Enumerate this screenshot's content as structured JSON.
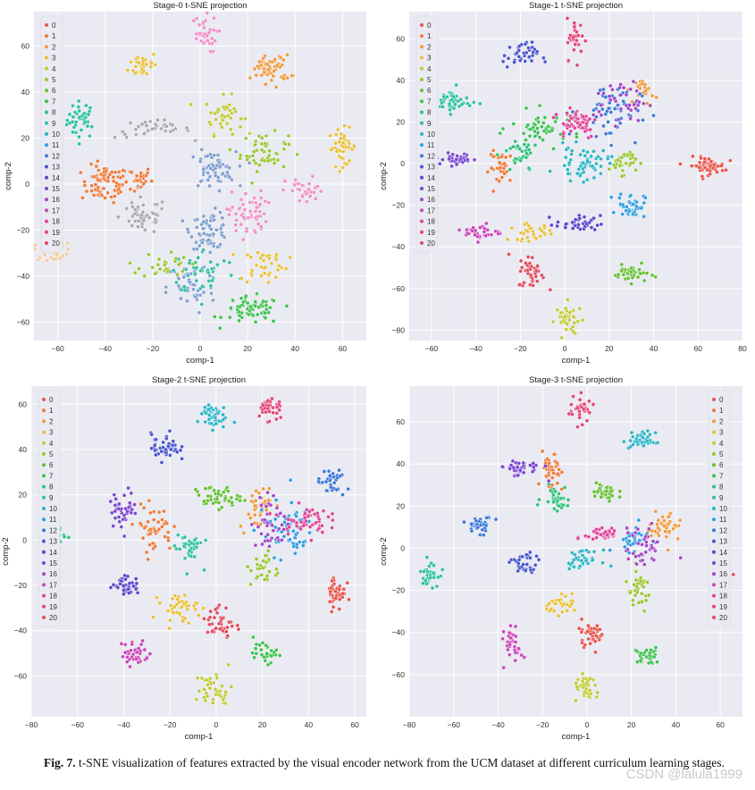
{
  "figure": {
    "caption_label": "Fig. 7.",
    "caption_text": "t-SNE visualization of features extracted by the visual encoder network from the UCM dataset at different curriculum learning stages.",
    "watermark": "CSDN @lalula1999"
  },
  "palette": [
    "#e8534a",
    "#ee7b3a",
    "#ef9a3c",
    "#e8c138",
    "#c2cb34",
    "#99c832",
    "#64c232",
    "#3ec24f",
    "#2fc27b",
    "#2ec0a3",
    "#2bb5c6",
    "#2e9ee0",
    "#3a79d8",
    "#4a56cf",
    "#5b45cc",
    "#7a45cf",
    "#a346c9",
    "#cb45b8",
    "#e04498",
    "#e34476",
    "#e24a5c"
  ],
  "chart_data": [
    {
      "type": "scatter",
      "title": "Stage-0 t-SNE projection",
      "xlabel": "comp-1",
      "ylabel": "comp-2",
      "xlim": [
        -70,
        70
      ],
      "ylim": [
        -68,
        75
      ],
      "xticks": [
        -60,
        -40,
        -20,
        0,
        20,
        40,
        60
      ],
      "yticks": [
        -60,
        -40,
        -20,
        0,
        20,
        40,
        60
      ],
      "legend_position": "top-left",
      "legend_labels": [
        "0",
        "1",
        "2",
        "3",
        "4",
        "5",
        "6",
        "7",
        "8",
        "9",
        "10",
        "11",
        "12",
        "13",
        "14",
        "15",
        "16",
        "17",
        "18",
        "19",
        "20"
      ],
      "clusters": [
        {
          "label": 0,
          "color": "#2ec0a3",
          "cx": -50,
          "cy": 28,
          "sx": 3,
          "sy": 4,
          "n": 40
        },
        {
          "label": 1,
          "color": "#ee7b3a",
          "cx": -40,
          "cy": 0,
          "sx": 5,
          "sy": 4,
          "n": 70
        },
        {
          "label": 2,
          "color": "#ee7b3a",
          "cx": -28,
          "cy": 2,
          "sx": 4,
          "sy": 3,
          "n": 30
        },
        {
          "label": 3,
          "color": "#e8c138",
          "cx": -24,
          "cy": 52,
          "sx": 3,
          "sy": 3,
          "n": 35
        },
        {
          "label": 4,
          "color": "#c2cb34",
          "cx": 10,
          "cy": 30,
          "sx": 4,
          "sy": 4,
          "n": 40
        },
        {
          "label": 5,
          "color": "#99c832",
          "cx": 27,
          "cy": 14,
          "sx": 5,
          "sy": 4,
          "n": 50
        },
        {
          "label": 6,
          "color": "#e8c138",
          "cx": 60,
          "cy": 16,
          "sx": 3,
          "sy": 4,
          "n": 45
        },
        {
          "label": 7,
          "color": "#aaaaaa",
          "cx": -20,
          "cy": 24,
          "sx": 8,
          "sy": 2,
          "n": 35
        },
        {
          "label": 8,
          "color": "#aaaaaa",
          "cx": -24,
          "cy": -14,
          "sx": 5,
          "sy": 4,
          "n": 50
        },
        {
          "label": 9,
          "color": "#3ec24f",
          "cx": 22,
          "cy": -55,
          "sx": 6,
          "sy": 3,
          "n": 65
        },
        {
          "label": 10,
          "color": "#7f9fd0",
          "cx": 4,
          "cy": -20,
          "sx": 4,
          "sy": 4,
          "n": 70
        },
        {
          "label": 11,
          "color": "#7f9fd0",
          "cx": 5,
          "cy": 6,
          "sx": 5,
          "sy": 4,
          "n": 60
        },
        {
          "label": 12,
          "color": "#7f9fd0",
          "cx": -4,
          "cy": -45,
          "sx": 5,
          "sy": 6,
          "n": 45
        },
        {
          "label": 13,
          "color": "#2ec0a3",
          "cx": 2,
          "cy": -38,
          "sx": 7,
          "sy": 5,
          "n": 45
        },
        {
          "label": 14,
          "color": "#99c832",
          "cx": -15,
          "cy": -35,
          "sx": 5,
          "sy": 3,
          "n": 30
        },
        {
          "label": 15,
          "color": "#e8c138",
          "cx": 27,
          "cy": -35,
          "sx": 5,
          "sy": 4,
          "n": 40
        },
        {
          "label": 16,
          "color": "#f08fc8",
          "cx": 1,
          "cy": 65,
          "sx": 3,
          "sy": 4,
          "n": 35
        },
        {
          "label": 17,
          "color": "#f08fc8",
          "cx": 20,
          "cy": -13,
          "sx": 4,
          "sy": 5,
          "n": 55
        },
        {
          "label": 18,
          "color": "#f08fc8",
          "cx": 44,
          "cy": -3,
          "sx": 4,
          "sy": 3,
          "n": 35
        },
        {
          "label": 19,
          "color": "#ef9a3c",
          "cx": 30,
          "cy": 50,
          "sx": 4,
          "sy": 3,
          "n": 60
        },
        {
          "label": 20,
          "color": "#f2c99a",
          "cx": -62,
          "cy": -29,
          "sx": 4,
          "sy": 2,
          "n": 35
        }
      ]
    },
    {
      "type": "scatter",
      "title": "Stage-1 t-SNE projection",
      "xlabel": "comp-1",
      "ylabel": "comp-2",
      "xlim": [
        -70,
        80
      ],
      "ylim": [
        -85,
        73
      ],
      "xticks": [
        -60,
        -40,
        -20,
        0,
        20,
        40,
        60,
        80
      ],
      "yticks": [
        -80,
        -60,
        -40,
        -20,
        0,
        20,
        40,
        60
      ],
      "legend_position": "top-left",
      "legend_labels": [
        "0",
        "1",
        "2",
        "3",
        "4",
        "5",
        "6",
        "7",
        "8",
        "9",
        "10",
        "11",
        "12",
        "13",
        "14",
        "15",
        "16",
        "17",
        "18",
        "19",
        "20"
      ],
      "clusters": [
        {
          "label": 0,
          "color": "#e8534a",
          "cx": 64,
          "cy": -1,
          "sx": 4,
          "sy": 2,
          "n": 60
        },
        {
          "label": 1,
          "color": "#ee7b3a",
          "cx": -28,
          "cy": -2,
          "sx": 3,
          "sy": 4,
          "n": 35
        },
        {
          "label": 2,
          "color": "#ef9a3c",
          "cx": 36,
          "cy": 35,
          "sx": 2,
          "sy": 3,
          "n": 25
        },
        {
          "label": 3,
          "color": "#e8c138",
          "cx": -15,
          "cy": -33,
          "sx": 5,
          "sy": 2,
          "n": 30
        },
        {
          "label": 4,
          "color": "#c2cb34",
          "cx": 2,
          "cy": -75,
          "sx": 3,
          "sy": 4,
          "n": 40
        },
        {
          "label": 5,
          "color": "#99c832",
          "cx": 26,
          "cy": 1,
          "sx": 3,
          "sy": 3,
          "n": 35
        },
        {
          "label": 6,
          "color": "#64c232",
          "cx": 30,
          "cy": -53,
          "sx": 4,
          "sy": 2,
          "n": 35
        },
        {
          "label": 7,
          "color": "#3ec24f",
          "cx": -8,
          "cy": 17,
          "sx": 8,
          "sy": 4,
          "n": 50
        },
        {
          "label": 8,
          "color": "#2fc27b",
          "cx": -20,
          "cy": 4,
          "sx": 4,
          "sy": 5,
          "n": 35
        },
        {
          "label": 9,
          "color": "#2ec0a3",
          "cx": -50,
          "cy": 30,
          "sx": 4,
          "sy": 3,
          "n": 45
        },
        {
          "label": 10,
          "color": "#2bb5c6",
          "cx": 8,
          "cy": 0,
          "sx": 6,
          "sy": 4,
          "n": 55
        },
        {
          "label": 11,
          "color": "#2e9ee0",
          "cx": 30,
          "cy": -20,
          "sx": 3,
          "sy": 3,
          "n": 45
        },
        {
          "label": 12,
          "color": "#3a79d8",
          "cx": 20,
          "cy": 25,
          "sx": 7,
          "sy": 7,
          "n": 55
        },
        {
          "label": 13,
          "color": "#4a56cf",
          "cx": -20,
          "cy": 52,
          "sx": 4,
          "sy": 3,
          "n": 40
        },
        {
          "label": 14,
          "color": "#5b45cc",
          "cx": 6,
          "cy": -29,
          "sx": 5,
          "sy": 2,
          "n": 35
        },
        {
          "label": 15,
          "color": "#7a45cf",
          "cx": -48,
          "cy": 2,
          "sx": 5,
          "sy": 1.5,
          "n": 35
        },
        {
          "label": 16,
          "color": "#a346c9",
          "cx": 25,
          "cy": 30,
          "sx": 6,
          "sy": 5,
          "n": 40
        },
        {
          "label": 17,
          "color": "#cb45b8",
          "cx": -37,
          "cy": -33,
          "sx": 4,
          "sy": 2,
          "n": 35
        },
        {
          "label": 18,
          "color": "#e04498",
          "cx": 5,
          "cy": 20,
          "sx": 5,
          "sy": 4,
          "n": 55
        },
        {
          "label": 19,
          "color": "#e34476",
          "cx": 5,
          "cy": 60,
          "sx": 2,
          "sy": 5,
          "n": 30
        },
        {
          "label": 20,
          "color": "#e24a5c",
          "cx": -15,
          "cy": -52,
          "sx": 3,
          "sy": 4,
          "n": 40
        }
      ]
    },
    {
      "type": "scatter",
      "title": "Stage-2 t-SNE projection",
      "xlabel": "comp-1",
      "ylabel": "comp-2",
      "xlim": [
        -80,
        65
      ],
      "ylim": [
        -78,
        68
      ],
      "xticks": [
        -80,
        -60,
        -40,
        -20,
        0,
        20,
        40,
        60
      ],
      "yticks": [
        -60,
        -40,
        -20,
        0,
        20,
        40,
        60
      ],
      "legend_position": "top-left",
      "legend_labels": [
        "0",
        "1",
        "2",
        "3",
        "4",
        "5",
        "6",
        "7",
        "8",
        "9",
        "10",
        "11",
        "12",
        "13",
        "14",
        "15",
        "16",
        "17",
        "18",
        "19",
        "20"
      ],
      "clusters": [
        {
          "label": 0,
          "color": "#e8534a",
          "cx": 52,
          "cy": -23,
          "sx": 2,
          "sy": 4,
          "n": 45
        },
        {
          "label": 1,
          "color": "#ee7b3a",
          "cx": -27,
          "cy": 5,
          "sx": 4,
          "sy": 5,
          "n": 45
        },
        {
          "label": 2,
          "color": "#ef9a3c",
          "cx": 18,
          "cy": 15,
          "sx": 4,
          "sy": 5,
          "n": 40
        },
        {
          "label": 3,
          "color": "#e8c138",
          "cx": -16,
          "cy": -30,
          "sx": 4,
          "sy": 3,
          "n": 40
        },
        {
          "label": 4,
          "color": "#c2cb34",
          "cx": -1,
          "cy": -66,
          "sx": 4,
          "sy": 4,
          "n": 40
        },
        {
          "label": 5,
          "color": "#99c832",
          "cx": 21,
          "cy": -13,
          "sx": 3,
          "sy": 4,
          "n": 30
        },
        {
          "label": 6,
          "color": "#64c232",
          "cx": 0,
          "cy": 19,
          "sx": 5,
          "sy": 2.5,
          "n": 45
        },
        {
          "label": 7,
          "color": "#3ec24f",
          "cx": 22,
          "cy": -50,
          "sx": 3,
          "sy": 2,
          "n": 30
        },
        {
          "label": 8,
          "color": "#2fc27b",
          "cx": -68,
          "cy": 2,
          "sx": 1.5,
          "sy": 2,
          "n": 12
        },
        {
          "label": 9,
          "color": "#2ec0a3",
          "cx": -12,
          "cy": -3,
          "sx": 3,
          "sy": 4,
          "n": 40
        },
        {
          "label": 10,
          "color": "#2bb5c6",
          "cx": -2,
          "cy": 55,
          "sx": 3,
          "sy": 3,
          "n": 45
        },
        {
          "label": 11,
          "color": "#2e9ee0",
          "cx": 30,
          "cy": 5,
          "sx": 6,
          "sy": 6,
          "n": 60
        },
        {
          "label": 12,
          "color": "#3a79d8",
          "cx": 50,
          "cy": 25,
          "sx": 3,
          "sy": 3,
          "n": 35
        },
        {
          "label": 13,
          "color": "#4a56cf",
          "cx": -22,
          "cy": 41,
          "sx": 3,
          "sy": 3,
          "n": 45
        },
        {
          "label": 14,
          "color": "#5b45cc",
          "cx": -39,
          "cy": -20,
          "sx": 3,
          "sy": 2,
          "n": 40
        },
        {
          "label": 15,
          "color": "#7a45cf",
          "cx": -40,
          "cy": 14,
          "sx": 3,
          "sy": 4,
          "n": 40
        },
        {
          "label": 16,
          "color": "#a346c9",
          "cx": 25,
          "cy": 8,
          "sx": 5,
          "sy": 6,
          "n": 40
        },
        {
          "label": 17,
          "color": "#cb45b8",
          "cx": -35,
          "cy": -50,
          "sx": 3,
          "sy": 3,
          "n": 40
        },
        {
          "label": 18,
          "color": "#e04498",
          "cx": 38,
          "cy": 9,
          "sx": 5,
          "sy": 3,
          "n": 50
        },
        {
          "label": 19,
          "color": "#e34476",
          "cx": 23,
          "cy": 58,
          "sx": 3,
          "sy": 3,
          "n": 35
        },
        {
          "label": 20,
          "color": "#e24a5c",
          "cx": 2,
          "cy": -37,
          "sx": 3,
          "sy": 4,
          "n": 40
        }
      ]
    },
    {
      "type": "scatter",
      "title": "Stage-3 t-SNE projection",
      "xlabel": "comp-1",
      "ylabel": "comp-2",
      "xlim": [
        -80,
        70
      ],
      "ylim": [
        -80,
        77
      ],
      "xticks": [
        -80,
        -60,
        -40,
        -20,
        0,
        20,
        40,
        60
      ],
      "yticks": [
        -60,
        -40,
        -20,
        0,
        20,
        40,
        60
      ],
      "legend_position": "top-right",
      "legend_labels": [
        "0",
        "1",
        "2",
        "3",
        "4",
        "5",
        "6",
        "7",
        "8",
        "9",
        "10",
        "11",
        "12",
        "13",
        "14",
        "15",
        "16",
        "17",
        "18",
        "19",
        "20"
      ],
      "clusters": [
        {
          "label": 0,
          "color": "#e8534a",
          "cx": 2,
          "cy": -40,
          "sx": 3,
          "sy": 3,
          "n": 40
        },
        {
          "label": 1,
          "color": "#ee7b3a",
          "cx": -16,
          "cy": 35,
          "sx": 2,
          "sy": 5,
          "n": 40
        },
        {
          "label": 2,
          "color": "#ef9a3c",
          "cx": 35,
          "cy": 10,
          "sx": 4,
          "sy": 4,
          "n": 45
        },
        {
          "label": 3,
          "color": "#e8c138",
          "cx": -10,
          "cy": -27,
          "sx": 4,
          "sy": 2,
          "n": 35
        },
        {
          "label": 4,
          "color": "#c2cb34",
          "cx": 0,
          "cy": -67,
          "sx": 3,
          "sy": 3,
          "n": 35
        },
        {
          "label": 5,
          "color": "#99c832",
          "cx": 23,
          "cy": -20,
          "sx": 3,
          "sy": 5,
          "n": 35
        },
        {
          "label": 6,
          "color": "#64c232",
          "cx": 8,
          "cy": 26,
          "sx": 3,
          "sy": 2.5,
          "n": 40
        },
        {
          "label": 7,
          "color": "#3ec24f",
          "cx": 27,
          "cy": -51,
          "sx": 3,
          "sy": 2,
          "n": 35
        },
        {
          "label": 8,
          "color": "#2fc27b",
          "cx": -14,
          "cy": 24,
          "sx": 3,
          "sy": 3,
          "n": 35
        },
        {
          "label": 9,
          "color": "#2ec0a3",
          "cx": -71,
          "cy": -12,
          "sx": 2,
          "sy": 3,
          "n": 35
        },
        {
          "label": 10,
          "color": "#2bb5c6",
          "cx": -2,
          "cy": -5,
          "sx": 4,
          "sy": 2,
          "n": 35
        },
        {
          "label": 11,
          "color": "#2bb5c6",
          "cx": 25,
          "cy": 51,
          "sx": 3,
          "sy": 2,
          "n": 40
        },
        {
          "label": 12,
          "color": "#3a79d8",
          "cx": -48,
          "cy": 11,
          "sx": 3,
          "sy": 2,
          "n": 35
        },
        {
          "label": 13,
          "color": "#2e9ee0",
          "cx": 20,
          "cy": 5,
          "sx": 4,
          "sy": 3,
          "n": 35
        },
        {
          "label": 14,
          "color": "#4a56cf",
          "cx": -28,
          "cy": -8,
          "sx": 3,
          "sy": 3,
          "n": 35
        },
        {
          "label": 15,
          "color": "#7a45cf",
          "cx": -30,
          "cy": 38,
          "sx": 5,
          "sy": 2,
          "n": 40
        },
        {
          "label": 16,
          "color": "#a346c9",
          "cx": 25,
          "cy": 0,
          "sx": 4,
          "sy": 5,
          "n": 40
        },
        {
          "label": 17,
          "color": "#cb45b8",
          "cx": -33,
          "cy": -46,
          "sx": 2,
          "sy": 4,
          "n": 35
        },
        {
          "label": 18,
          "color": "#e04498",
          "cx": 7,
          "cy": 7,
          "sx": 4,
          "sy": 2,
          "n": 40
        },
        {
          "label": 19,
          "color": "#e34476",
          "cx": -3,
          "cy": 66,
          "sx": 3,
          "sy": 3,
          "n": 35
        },
        {
          "label": 20,
          "color": "#e24a5c",
          "cx": 62,
          "cy": -12,
          "sx": 1.5,
          "sy": 2,
          "n": 10
        }
      ]
    }
  ]
}
